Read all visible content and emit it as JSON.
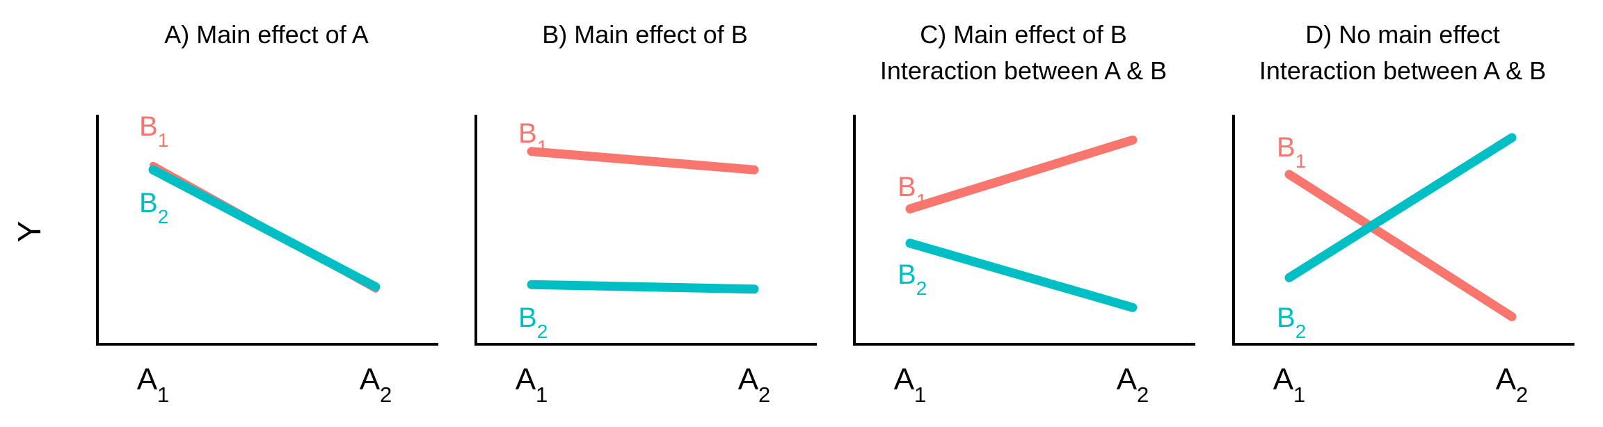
{
  "figure": {
    "ylabel": "Y",
    "colors": {
      "B1": "#F8766D",
      "B2": "#00BFC4",
      "axis": "#000000",
      "text": "#000000"
    }
  },
  "chart_data": [
    {
      "type": "line",
      "title": [
        "A) Main effect of A"
      ],
      "xlabel": "",
      "ylabel": "Y",
      "categories": [
        "A1",
        "A2"
      ],
      "ylim": [
        0,
        10
      ],
      "legend": "direct labels",
      "grid": false,
      "series": [
        {
          "name": "B1",
          "color": "#F8766D",
          "values": [
            7.8,
            2.4
          ]
        },
        {
          "name": "B2",
          "color": "#00BFC4",
          "values": [
            7.6,
            2.5
          ]
        }
      ]
    },
    {
      "type": "line",
      "title": [
        "B) Main effect of B"
      ],
      "xlabel": "",
      "ylabel": "",
      "categories": [
        "A1",
        "A2"
      ],
      "ylim": [
        0,
        10
      ],
      "legend": "direct labels",
      "grid": false,
      "series": [
        {
          "name": "B1",
          "color": "#F8766D",
          "values": [
            8.4,
            7.6
          ]
        },
        {
          "name": "B2",
          "color": "#00BFC4",
          "values": [
            2.6,
            2.4
          ]
        }
      ]
    },
    {
      "type": "line",
      "title": [
        "C) Main effect of B",
        "Interaction between A & B"
      ],
      "xlabel": "",
      "ylabel": "",
      "categories": [
        "A1",
        "A2"
      ],
      "ylim": [
        0,
        10
      ],
      "legend": "direct labels",
      "grid": false,
      "series": [
        {
          "name": "B1",
          "color": "#F8766D",
          "values": [
            5.9,
            8.9
          ]
        },
        {
          "name": "B2",
          "color": "#00BFC4",
          "values": [
            4.4,
            1.6
          ]
        }
      ]
    },
    {
      "type": "line",
      "title": [
        "D) No main effect",
        "Interaction between A & B"
      ],
      "xlabel": "",
      "ylabel": "",
      "categories": [
        "A1",
        "A2"
      ],
      "ylim": [
        0,
        10
      ],
      "legend": "direct labels",
      "grid": false,
      "series": [
        {
          "name": "B1",
          "color": "#F8766D",
          "values": [
            7.4,
            1.2
          ]
        },
        {
          "name": "B2",
          "color": "#00BFC4",
          "values": [
            2.9,
            9.0
          ]
        }
      ]
    }
  ]
}
